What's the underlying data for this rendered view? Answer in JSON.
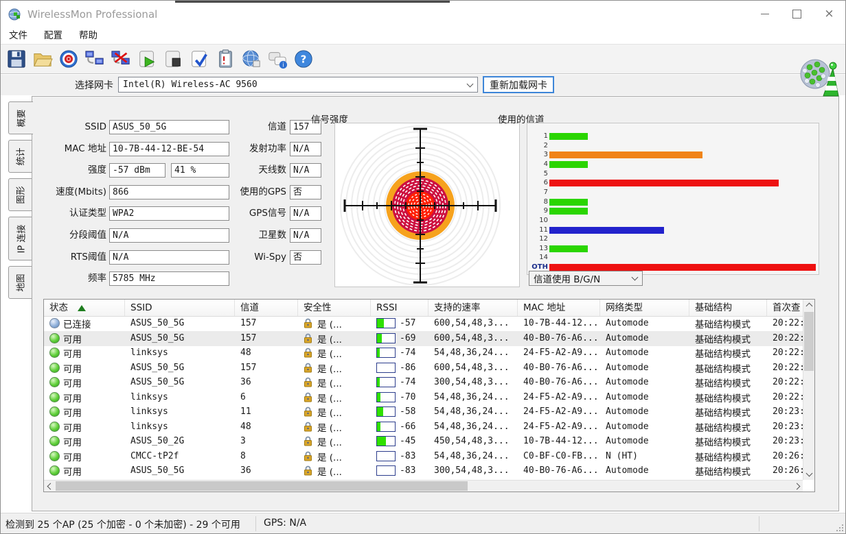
{
  "window": {
    "title": "WirelessMon Professional",
    "controls": [
      {
        "name": "minimize",
        "icon": "minimize-icon"
      },
      {
        "name": "maximize",
        "icon": "maximize-icon"
      },
      {
        "name": "close",
        "icon": "close-icon"
      }
    ]
  },
  "menu": {
    "items": [
      "文件",
      "配置",
      "帮助"
    ]
  },
  "toolbar": {
    "icons": [
      "save",
      "open",
      "target",
      "connect",
      "disconnect",
      "log-start",
      "log-stop",
      "log-verify",
      "report",
      "web",
      "chat-info",
      "help"
    ]
  },
  "adapter": {
    "label": "选择网卡",
    "value": "Intel(R) Wireless-AC 9560",
    "reload_button": "重新加载网卡"
  },
  "tabs": [
    {
      "label": "概要",
      "active": true
    },
    {
      "label": "统计",
      "active": false
    },
    {
      "label": "图形",
      "active": false
    },
    {
      "label": "IP 连接",
      "active": false
    },
    {
      "label": "地图",
      "active": false
    }
  ],
  "summary": {
    "left_fields": [
      {
        "label": "SSID",
        "values": [
          "ASUS_50_5G"
        ]
      },
      {
        "label": "MAC 地址",
        "values": [
          "10-7B-44-12-BE-54"
        ]
      },
      {
        "label": "强度",
        "values": [
          "-57 dBm",
          "41 %"
        ]
      },
      {
        "label": "速度(Mbits)",
        "values": [
          "866"
        ]
      },
      {
        "label": "认证类型",
        "values": [
          "WPA2"
        ]
      },
      {
        "label": "分段阈值",
        "values": [
          "N/A"
        ]
      },
      {
        "label": "RTS阈值",
        "values": [
          "N/A"
        ]
      },
      {
        "label": "频率",
        "values": [
          "5785 MHz"
        ]
      }
    ],
    "right_fields": [
      {
        "label": "信道",
        "values": [
          "157"
        ]
      },
      {
        "label": "发射功率",
        "values": [
          "N/A"
        ]
      },
      {
        "label": "天线数",
        "values": [
          "N/A"
        ]
      },
      {
        "label": "使用的GPS",
        "values": [
          "否"
        ]
      },
      {
        "label": "GPS信号",
        "values": [
          "N/A"
        ]
      },
      {
        "label": "卫星数",
        "values": [
          "N/A"
        ]
      },
      {
        "label": "Wi-Spy",
        "values": [
          "否"
        ]
      }
    ]
  },
  "signal_chart": {
    "title": "信号强度"
  },
  "channel_chart": {
    "title": "使用的信道",
    "dropdown_value": "信道使用 B/G/N",
    "chart_data": {
      "type": "bar",
      "orientation": "horizontal",
      "categories": [
        "1",
        "2",
        "3",
        "4",
        "5",
        "6",
        "7",
        "8",
        "9",
        "10",
        "11",
        "12",
        "13",
        "14",
        "OTH"
      ],
      "values": [
        1,
        0,
        4,
        1,
        0,
        6,
        0,
        1,
        1,
        0,
        3,
        0,
        1,
        0,
        7
      ],
      "colors": [
        "#2ad500",
        "",
        "#f08418",
        "#2ad500",
        "",
        "#ee1111",
        "",
        "#2ad500",
        "#2ad500",
        "",
        "#2222cc",
        "",
        "#2ad500",
        "",
        "#ee1111"
      ],
      "xlim": [
        0,
        7
      ],
      "title": "使用的信道"
    }
  },
  "table": {
    "columns": [
      "状态",
      "SSID",
      "信道",
      "安全性",
      "RSSI",
      "支持的速率",
      "MAC 地址",
      "网络类型",
      "基础结构",
      "首次查"
    ],
    "sort_column": "状态",
    "rows": [
      {
        "status": "已连接",
        "status_icon": "blue",
        "ssid": "ASUS_50_5G",
        "channel": "157",
        "security": "是 (...",
        "rssi": "-57",
        "rssi_fill": 40,
        "rates": "600,54,48,3...",
        "mac": "10-7B-44-12...",
        "net_type": "Automode",
        "infra": "基础结构模式",
        "first_seen": "20:22:",
        "selected": false
      },
      {
        "status": "可用",
        "status_icon": "green",
        "ssid": "ASUS_50_5G",
        "channel": "157",
        "security": "是 (...",
        "rssi": "-69",
        "rssi_fill": 25,
        "rates": "600,54,48,3...",
        "mac": "40-B0-76-A6...",
        "net_type": "Automode",
        "infra": "基础结构模式",
        "first_seen": "20:22:",
        "selected": true
      },
      {
        "status": "可用",
        "status_icon": "green",
        "ssid": "linksys",
        "channel": "48",
        "security": "是 (...",
        "rssi": "-74",
        "rssi_fill": 15,
        "rates": "54,48,36,24...",
        "mac": "24-F5-A2-A9...",
        "net_type": "Automode",
        "infra": "基础结构模式",
        "first_seen": "20:22:",
        "selected": false
      },
      {
        "status": "可用",
        "status_icon": "green",
        "ssid": "ASUS_50_5G",
        "channel": "157",
        "security": "是 (...",
        "rssi": "-86",
        "rssi_fill": 0,
        "rates": "600,54,48,3...",
        "mac": "40-B0-76-A6...",
        "net_type": "Automode",
        "infra": "基础结构模式",
        "first_seen": "20:22:",
        "selected": false
      },
      {
        "status": "可用",
        "status_icon": "green",
        "ssid": "ASUS_50_5G",
        "channel": "36",
        "security": "是 (...",
        "rssi": "-74",
        "rssi_fill": 15,
        "rates": "300,54,48,3...",
        "mac": "40-B0-76-A6...",
        "net_type": "Automode",
        "infra": "基础结构模式",
        "first_seen": "20:22:",
        "selected": false
      },
      {
        "status": "可用",
        "status_icon": "green",
        "ssid": "linksys",
        "channel": "6",
        "security": "是 (...",
        "rssi": "-70",
        "rssi_fill": 20,
        "rates": "54,48,36,24...",
        "mac": "24-F5-A2-A9...",
        "net_type": "Automode",
        "infra": "基础结构模式",
        "first_seen": "20:22:",
        "selected": false
      },
      {
        "status": "可用",
        "status_icon": "green",
        "ssid": "linksys",
        "channel": "11",
        "security": "是 (...",
        "rssi": "-58",
        "rssi_fill": 33,
        "rates": "54,48,36,24...",
        "mac": "24-F5-A2-A9...",
        "net_type": "Automode",
        "infra": "基础结构模式",
        "first_seen": "20:23:",
        "selected": false
      },
      {
        "status": "可用",
        "status_icon": "green",
        "ssid": "linksys",
        "channel": "48",
        "security": "是 (...",
        "rssi": "-66",
        "rssi_fill": 20,
        "rates": "54,48,36,24...",
        "mac": "24-F5-A2-A9...",
        "net_type": "Automode",
        "infra": "基础结构模式",
        "first_seen": "20:23:",
        "selected": false
      },
      {
        "status": "可用",
        "status_icon": "green",
        "ssid": "ASUS_50_2G",
        "channel": "3",
        "security": "是 (...",
        "rssi": "-45",
        "rssi_fill": 50,
        "rates": "450,54,48,3...",
        "mac": "10-7B-44-12...",
        "net_type": "Automode",
        "infra": "基础结构模式",
        "first_seen": "20:23:",
        "selected": false
      },
      {
        "status": "可用",
        "status_icon": "green",
        "ssid": "CMCC-tP2f",
        "channel": "8",
        "security": "是 (...",
        "rssi": "-83",
        "rssi_fill": 0,
        "rates": "54,48,36,24...",
        "mac": "C0-BF-C0-FB...",
        "net_type": "N (HT)",
        "infra": "基础结构模式",
        "first_seen": "20:26:",
        "selected": false
      },
      {
        "status": "可用",
        "status_icon": "green",
        "ssid": "ASUS_50_5G",
        "channel": "36",
        "security": "是 (...",
        "rssi": "-83",
        "rssi_fill": 0,
        "rates": "300,54,48,3...",
        "mac": "40-B0-76-A6...",
        "net_type": "Automode",
        "infra": "基础结构模式",
        "first_seen": "20:26:",
        "selected": false
      }
    ]
  },
  "status_bar": {
    "ap_summary": "检测到 25 个AP (25 个加密 - 0 个未加密) - 29 个可用",
    "gps": "GPS: N/A"
  },
  "colors": {
    "accent_blue": "#3c85d8",
    "bar_green": "#2ad500",
    "bar_orange": "#f08418",
    "bar_red": "#ee1111",
    "bar_blue": "#2222cc"
  }
}
